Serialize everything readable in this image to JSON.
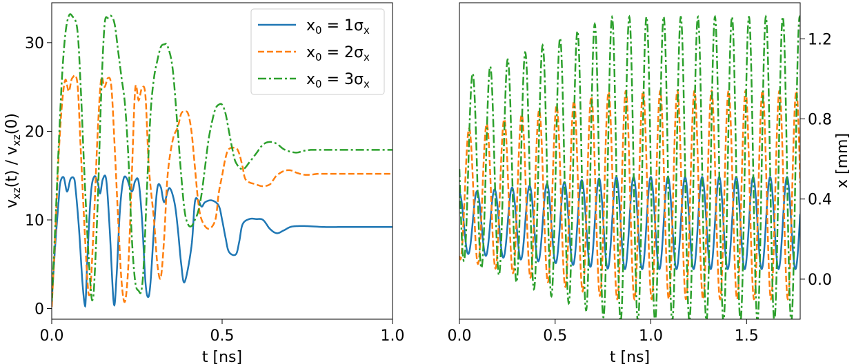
{
  "chart_data": [
    {
      "type": "line",
      "title": "",
      "xlabel": "t [ns]",
      "ylabel": "v_xz(t) / v_xz(0)",
      "ylabel_parts": {
        "v1": "v",
        "sub1": "xz",
        "mid": "(t) / ",
        "v2": "v",
        "sub2": "xz",
        "end": "(0)"
      },
      "xlim": [
        0.0,
        1.0
      ],
      "ylim": [
        -1.2,
        34.5
      ],
      "xticks": [
        0.0,
        0.5,
        1.0
      ],
      "xtick_labels": [
        "0.0",
        "0.5",
        "1.0"
      ],
      "yticks": [
        0,
        10,
        20,
        30
      ],
      "ytick_labels": [
        "0",
        "10",
        "20",
        "30"
      ],
      "legend": {
        "position": "top-right",
        "entries": [
          {
            "series": "x0=1σx",
            "pre": "x",
            "sub": "0",
            "mid": " = 1σ",
            "sub2": "x"
          },
          {
            "series": "x0=2σx",
            "pre": "x",
            "sub": "0",
            "mid": " = 2σ",
            "sub2": "x"
          },
          {
            "series": "x0=3σx",
            "pre": "x",
            "sub": "0",
            "mid": " = 3σ",
            "sub2": "x"
          }
        ]
      },
      "series": [
        {
          "name": "x0=1σx",
          "color": "#1f77b4",
          "style": "solid",
          "x": [
            0.0,
            0.01,
            0.02,
            0.025,
            0.035,
            0.045,
            0.055,
            0.065,
            0.07,
            0.08,
            0.09,
            0.097,
            0.1,
            0.105,
            0.115,
            0.125,
            0.135,
            0.142,
            0.15,
            0.16,
            0.17,
            0.182,
            0.19,
            0.2,
            0.21,
            0.22,
            0.235,
            0.245,
            0.255,
            0.265,
            0.275,
            0.283,
            0.29,
            0.3,
            0.31,
            0.32,
            0.33,
            0.345,
            0.36,
            0.37,
            0.38,
            0.39,
            0.41,
            0.42,
            0.43,
            0.44,
            0.45,
            0.47,
            0.49,
            0.5,
            0.51,
            0.52,
            0.54,
            0.55,
            0.56,
            0.58,
            0.6,
            0.62,
            0.64,
            0.66,
            0.68,
            0.7,
            0.72,
            0.75,
            0.8,
            0.85,
            0.9,
            1.0
          ],
          "y": [
            0.8,
            7,
            12,
            14.2,
            14.8,
            13.2,
            14.6,
            14.7,
            13.5,
            9,
            3,
            0.4,
            1.2,
            6,
            13,
            14.9,
            14.2,
            13,
            14.6,
            14.5,
            9,
            0.6,
            3.5,
            11,
            14.5,
            14.7,
            13.2,
            14.4,
            14.3,
            10,
            3,
            1.3,
            3,
            9,
            13.6,
            13.7,
            12,
            13.6,
            12,
            9,
            5,
            3,
            7,
            12,
            12.2,
            11.5,
            12,
            12.2,
            11.6,
            10,
            8,
            6.4,
            6.1,
            7.5,
            9.5,
            10.1,
            10.1,
            10,
            9,
            8.5,
            8.8,
            9.2,
            9.3,
            9.3,
            9.2,
            9.2,
            9.2,
            9.2
          ]
        },
        {
          "name": "x0=2σx",
          "color": "#ff7f0e",
          "style": "dashed",
          "x": [
            0.0,
            0.01,
            0.02,
            0.03,
            0.04,
            0.05,
            0.06,
            0.075,
            0.085,
            0.095,
            0.105,
            0.11,
            0.115,
            0.125,
            0.135,
            0.145,
            0.155,
            0.165,
            0.175,
            0.185,
            0.195,
            0.205,
            0.215,
            0.225,
            0.235,
            0.245,
            0.255,
            0.265,
            0.275,
            0.285,
            0.3,
            0.31,
            0.32,
            0.33,
            0.34,
            0.355,
            0.37,
            0.38,
            0.39,
            0.4,
            0.41,
            0.42,
            0.43,
            0.44,
            0.46,
            0.48,
            0.49,
            0.5,
            0.51,
            0.52,
            0.54,
            0.55,
            0.56,
            0.57,
            0.6,
            0.62,
            0.64,
            0.65,
            0.66,
            0.68,
            0.7,
            0.72,
            0.74,
            0.76,
            0.78,
            0.8,
            0.85,
            0.9,
            1.0
          ],
          "y": [
            0.2,
            8,
            17,
            23,
            25.8,
            24.5,
            26,
            25.5,
            18,
            10,
            3,
            1.5,
            3,
            11,
            20,
            25.9,
            25,
            26,
            25,
            18,
            10,
            3,
            0.8,
            5,
            15,
            24.8,
            23.5,
            24.9,
            24,
            16,
            10,
            5,
            3.5,
            8,
            15,
            19,
            20.5,
            22,
            22.2,
            22,
            20,
            16,
            12,
            10,
            9,
            10,
            13,
            15,
            17,
            18,
            18.1,
            17.5,
            16,
            14.5,
            14,
            13.8,
            14,
            14.5,
            15,
            15.5,
            15.6,
            15.3,
            15.1,
            15.1,
            15.2,
            15.2,
            15.2,
            15.2,
            15.2
          ]
        },
        {
          "name": "x0=3σx",
          "color": "#2ca02c",
          "style": "dashdot",
          "x": [
            0.0,
            0.01,
            0.02,
            0.03,
            0.04,
            0.05,
            0.06,
            0.075,
            0.085,
            0.095,
            0.105,
            0.115,
            0.12,
            0.125,
            0.135,
            0.145,
            0.155,
            0.165,
            0.175,
            0.185,
            0.195,
            0.205,
            0.215,
            0.225,
            0.235,
            0.245,
            0.255,
            0.263,
            0.27,
            0.28,
            0.29,
            0.3,
            0.31,
            0.32,
            0.33,
            0.34,
            0.355,
            0.37,
            0.38,
            0.39,
            0.4,
            0.41,
            0.42,
            0.43,
            0.44,
            0.45,
            0.46,
            0.47,
            0.48,
            0.49,
            0.5,
            0.51,
            0.52,
            0.53,
            0.54,
            0.56,
            0.58,
            0.6,
            0.62,
            0.64,
            0.66,
            0.68,
            0.7,
            0.72,
            0.74,
            0.76,
            0.78,
            0.8,
            0.85,
            0.9,
            1.0
          ],
          "y": [
            0.8,
            9,
            18,
            26,
            31,
            33,
            33,
            31.5,
            25,
            16,
            8,
            2,
            1,
            3,
            12,
            24,
            32,
            32.8,
            33,
            32,
            29,
            26,
            23,
            17,
            8,
            3,
            2,
            2,
            5,
            14,
            22,
            26,
            28,
            29.5,
            29.8,
            29.6,
            27,
            20,
            15,
            11,
            9.5,
            9.3,
            10,
            11,
            13,
            16,
            19,
            21,
            22.5,
            23,
            23,
            22,
            20,
            18,
            16.5,
            15.7,
            16.5,
            17.5,
            18.5,
            18.8,
            18.6,
            18,
            17.7,
            17.6,
            17.8,
            17.9,
            17.9,
            17.9,
            17.9,
            17.9,
            17.9
          ]
        }
      ]
    },
    {
      "type": "line",
      "title": "",
      "xlabel": "t [ns]",
      "ylabel": "x [mm]",
      "ylabel_side": "right",
      "xlim": [
        0.0,
        1.78
      ],
      "ylim": [
        -0.2,
        1.38
      ],
      "xticks": [
        0.0,
        0.5,
        1.0,
        1.5
      ],
      "xtick_labels": [
        "0.0",
        "0.5",
        "1.0",
        "1.5"
      ],
      "yticks": [
        0.0,
        0.4,
        0.8,
        1.2
      ],
      "ytick_labels": [
        "0.0",
        "0.4",
        "0.8",
        "1.2"
      ],
      "series": [
        {
          "name": "x0=1σx",
          "color": "#1f77b4",
          "style": "solid",
          "oscillation": {
            "center": 0.28,
            "amp_start": 0.15,
            "amp_end": 0.23,
            "period_start": 0.092,
            "period_end": 0.088,
            "x_start": 0.0,
            "y_start": 0.28,
            "phase": 0.0
          }
        },
        {
          "name": "x0=2σx",
          "color": "#ff7f0e",
          "style": "dashed",
          "oscillation": {
            "center": 0.42,
            "amp_start": 0.32,
            "amp_end": 0.52,
            "period_start": 0.092,
            "period_end": 0.088,
            "x_start": 0.0,
            "y_start": 0.55,
            "phase": 0.45
          }
        },
        {
          "name": "x0=3σx",
          "color": "#2ca02c",
          "style": "dashdot",
          "oscillation": {
            "center": 0.55,
            "amp_start": 0.45,
            "amp_end": 0.76,
            "period_start": 0.092,
            "period_end": 0.088,
            "x_start": 0.0,
            "y_start": 0.8,
            "phase": 0.25
          }
        }
      ]
    }
  ]
}
